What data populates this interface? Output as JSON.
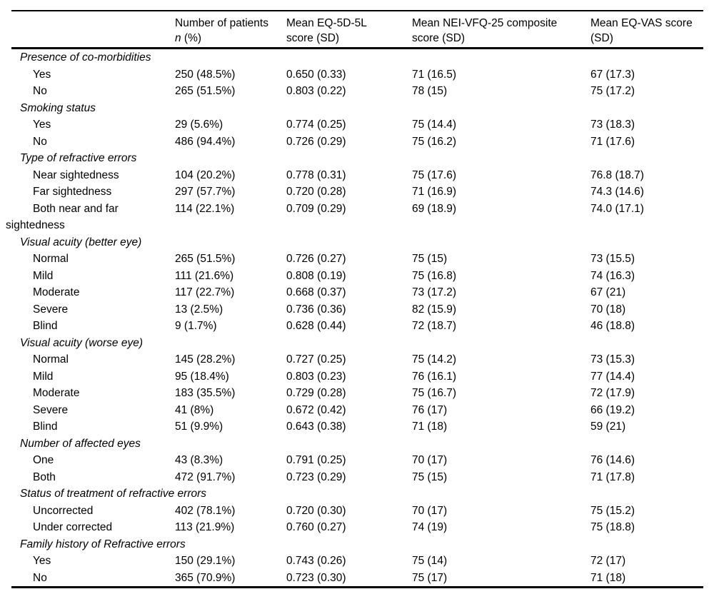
{
  "table": {
    "header": {
      "col_patients": {
        "line1": "Number of patients",
        "line2_italic": "n",
        "line2_rest": " (%)"
      },
      "col_eq5d": {
        "line1": "Mean EQ-5D-5L",
        "line2": "score (SD)"
      },
      "col_nei": {
        "line1": "Mean NEI-VFQ-25 composite",
        "line2": "score (SD)"
      },
      "col_vas": {
        "line1": "Mean EQ-VAS score",
        "line2": "(SD)"
      }
    },
    "sections": [
      {
        "label": "Presence of co-morbidities",
        "rows": [
          {
            "label": "Yes",
            "values": [
              "250 (48.5%)",
              "0.650 (0.33)",
              "71 (16.5)",
              "67 (17.3)"
            ]
          },
          {
            "label": "No",
            "values": [
              "265 (51.5%)",
              "0.803 (0.22)",
              "78 (15)",
              "75 (17.2)"
            ]
          }
        ]
      },
      {
        "label": "Smoking status",
        "rows": [
          {
            "label": "Yes",
            "values": [
              "29 (5.6%)",
              "0.774 (0.25)",
              "75 (14.4)",
              "73 (18.3)"
            ]
          },
          {
            "label": "No",
            "values": [
              "486 (94.4%)",
              "0.726 (0.29)",
              "75 (16.2)",
              "71 (17.6)"
            ]
          }
        ]
      },
      {
        "label": "Type of refractive errors",
        "rows": [
          {
            "label": "Near sightedness",
            "values": [
              "104 (20.2%)",
              "0.778 (0.31)",
              "75 (17.6)",
              "76.8 (18.7)"
            ]
          },
          {
            "label": "Far sightedness",
            "values": [
              "297 (57.7%)",
              "0.720 (0.28)",
              "71 (16.9)",
              "74.3 (14.6)"
            ]
          },
          {
            "label": "Both near and far sightedness",
            "values": [
              "114 (22.1%)",
              "0.709 (0.29)",
              "69 (18.9)",
              "74.0 (17.1)"
            ]
          }
        ]
      },
      {
        "label": "Visual acuity (better eye)",
        "rows": [
          {
            "label": "Normal",
            "values": [
              "265 (51.5%)",
              "0.726 (0.27)",
              "75 (15)",
              "73 (15.5)"
            ]
          },
          {
            "label": "Mild",
            "values": [
              "111 (21.6%)",
              "0.808 (0.19)",
              "75 (16.8)",
              "74 (16.3)"
            ]
          },
          {
            "label": "Moderate",
            "values": [
              "117 (22.7%)",
              "0.668 (0.37)",
              "73 (17.2)",
              "67 (21)"
            ]
          },
          {
            "label": "Severe",
            "values": [
              "13 (2.5%)",
              "0.736 (0.36)",
              "82 (15.9)",
              "70 (18)"
            ]
          },
          {
            "label": "Blind",
            "values": [
              "9 (1.7%)",
              "0.628 (0.44)",
              "72 (18.7)",
              "46 (18.8)"
            ]
          }
        ]
      },
      {
        "label": "Visual acuity (worse eye)",
        "rows": [
          {
            "label": "Normal",
            "values": [
              "145 (28.2%)",
              "0.727 (0.25)",
              "75 (14.2)",
              "73 (15.3)"
            ]
          },
          {
            "label": "Mild",
            "values": [
              "95 (18.4%)",
              "0.803 (0.23)",
              "76 (16.1)",
              "77 (14.4)"
            ]
          },
          {
            "label": "Moderate",
            "values": [
              "183 (35.5%)",
              "0.729 (0.28)",
              "75 (16.7)",
              "72 (17.9)"
            ]
          },
          {
            "label": "Severe",
            "values": [
              "41 (8%)",
              "0.672 (0.42)",
              "76 (17)",
              "66 (19.2)"
            ]
          },
          {
            "label": "Blind",
            "values": [
              "51 (9.9%)",
              "0.643 (0.38)",
              "71 (18)",
              "59 (21)"
            ]
          }
        ]
      },
      {
        "label": "Number of affected eyes",
        "rows": [
          {
            "label": "One",
            "values": [
              "43 (8.3%)",
              "0.791 (0.25)",
              "70 (17)",
              "76 (14.6)"
            ]
          },
          {
            "label": "Both",
            "values": [
              "472 (91.7%)",
              "0.723 (0.29)",
              "75 (15)",
              "71 (17.8)"
            ]
          }
        ]
      },
      {
        "label": "Status of treatment of refractive errors",
        "rows": [
          {
            "label": "Uncorrected",
            "values": [
              "402 (78.1%)",
              "0.720 (0.30)",
              "70 (17)",
              "75 (15.2)"
            ]
          },
          {
            "label": "Under corrected",
            "values": [
              "113 (21.9%)",
              "0.760 (0.27)",
              "74 (19)",
              "75 (18.8)"
            ]
          }
        ]
      },
      {
        "label": "Family history of Refractive errors",
        "rows": [
          {
            "label": "Yes",
            "values": [
              "150 (29.1%)",
              "0.743 (0.26)",
              "75 (14)",
              "72 (17)"
            ]
          },
          {
            "label": "No",
            "values": [
              "365 (70.9%)",
              "0.723 (0.30)",
              "75 (17)",
              "71 (18)"
            ]
          }
        ]
      }
    ]
  }
}
